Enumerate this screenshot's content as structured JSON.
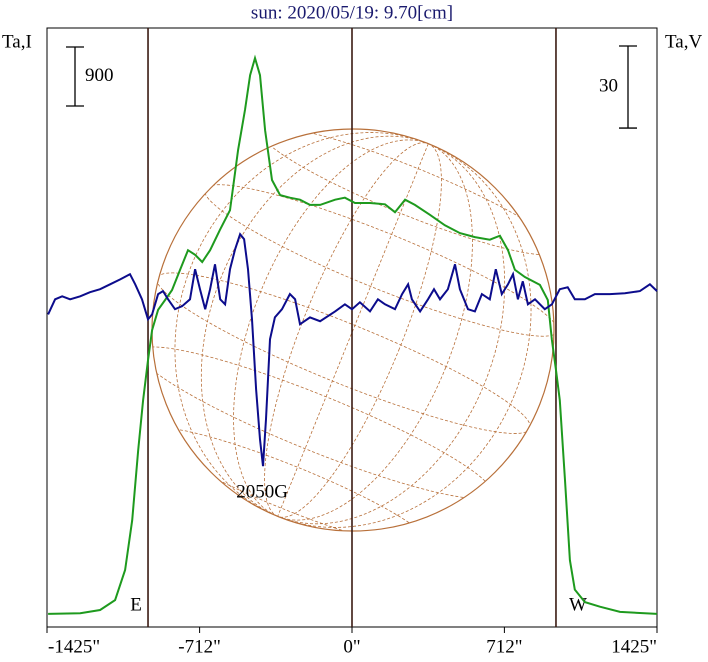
{
  "chart_data": {
    "type": "line",
    "title": "sun: 2020/05/19: 9.70[cm]",
    "xlim": [
      -1425,
      1425
    ],
    "xticks": [
      {
        "value": -1425,
        "label": "-1425\""
      },
      {
        "value": -712,
        "label": "-712\""
      },
      {
        "value": 0,
        "label": "0\""
      },
      {
        "value": 712,
        "label": "712\""
      },
      {
        "value": 1425,
        "label": "1425\""
      }
    ],
    "ylim": [
      0,
      9140
    ],
    "y2lim": [
      -118,
      101
    ],
    "scale_bars": [
      900,
      30
    ],
    "limb_lines": [
      -953,
      953
    ],
    "limb_labels": [
      "E",
      "W"
    ],
    "annotation": {
      "text": "2050G",
      "x": -420
    },
    "series": [
      {
        "name": "Ta,I",
        "color": "#1e9a1e",
        "axis": "y",
        "x": [
          -1420,
          -1270,
          -1177,
          -1107,
          -1060,
          -1027,
          -999,
          -976,
          -953,
          -934,
          -906,
          -873,
          -841,
          -803,
          -766,
          -733,
          -700,
          -663,
          -617,
          -570,
          -532,
          -500,
          -476,
          -453,
          -430,
          -406,
          -374,
          -336,
          -290,
          -243,
          -196,
          -149,
          -79,
          -33,
          14,
          84,
          154,
          201,
          248,
          294,
          364,
          434,
          504,
          574,
          644,
          691,
          729,
          761,
          808,
          878,
          915,
          934,
          953,
          971,
          995,
          1018,
          1041,
          1088,
          1158,
          1252,
          1425
        ],
        "values": [
          200,
          210,
          260,
          410,
          870,
          1630,
          2700,
          3460,
          4070,
          4530,
          4840,
          4990,
          5140,
          5450,
          5750,
          5680,
          5570,
          5750,
          6060,
          6360,
          7280,
          7890,
          8420,
          8680,
          8420,
          7580,
          6820,
          6590,
          6550,
          6520,
          6440,
          6440,
          6520,
          6550,
          6470,
          6470,
          6450,
          6330,
          6520,
          6440,
          6290,
          6130,
          6010,
          5950,
          5910,
          5970,
          5750,
          5450,
          5340,
          5220,
          4990,
          4380,
          3920,
          3460,
          2240,
          1020,
          570,
          380,
          310,
          230,
          200
        ]
      },
      {
        "name": "Ta,V",
        "color": "#0c0c8c",
        "axis": "y2",
        "x": [
          -1420,
          -1387,
          -1354,
          -1317,
          -1270,
          -1224,
          -1177,
          -1130,
          -1083,
          -1037,
          -1013,
          -981,
          -953,
          -934,
          -906,
          -883,
          -859,
          -827,
          -794,
          -757,
          -733,
          -710,
          -686,
          -663,
          -640,
          -616,
          -593,
          -570,
          -546,
          -523,
          -504,
          -486,
          -467,
          -448,
          -430,
          -416,
          -402,
          -383,
          -360,
          -327,
          -290,
          -266,
          -243,
          -196,
          -149,
          -79,
          -33,
          0,
          37,
          84,
          121,
          154,
          201,
          234,
          262,
          280,
          318,
          355,
          383,
          411,
          448,
          481,
          504,
          542,
          574,
          607,
          644,
          672,
          700,
          729,
          752,
          775,
          798,
          822,
          855,
          901,
          934,
          971,
          1008,
          1041,
          1088,
          1135,
          1205,
          1275,
          1345,
          1392,
          1425
        ],
        "values": [
          -3.7,
          1.8,
          2.9,
          1.8,
          2.9,
          4.4,
          5.5,
          7.3,
          9.1,
          11.0,
          7.3,
          1.8,
          -5.5,
          -3.7,
          3.7,
          4.8,
          1.8,
          -1.8,
          -0.7,
          1.8,
          12.8,
          5.5,
          -1.8,
          5.5,
          14.6,
          1.8,
          0,
          12.8,
          20.1,
          25.6,
          23.8,
          12.8,
          -5.5,
          -31.1,
          -49.4,
          -59.2,
          -42.0,
          -12.8,
          -4.8,
          -1.8,
          3.7,
          1.8,
          -7.3,
          -4.8,
          -6.2,
          -2.6,
          0,
          -1.8,
          0.7,
          -2.6,
          1.8,
          0,
          -1.8,
          3.7,
          7.3,
          1.8,
          -2.6,
          1.8,
          5.5,
          1.8,
          5.5,
          14.6,
          5.5,
          -1.8,
          -2.6,
          3.7,
          1.8,
          12.8,
          3.7,
          7.3,
          11.0,
          1.8,
          8.4,
          0,
          1.8,
          -1.8,
          0,
          5.5,
          6.2,
          1.8,
          1.8,
          3.7,
          3.7,
          4.0,
          4.8,
          7.3,
          4.8
        ]
      }
    ]
  }
}
